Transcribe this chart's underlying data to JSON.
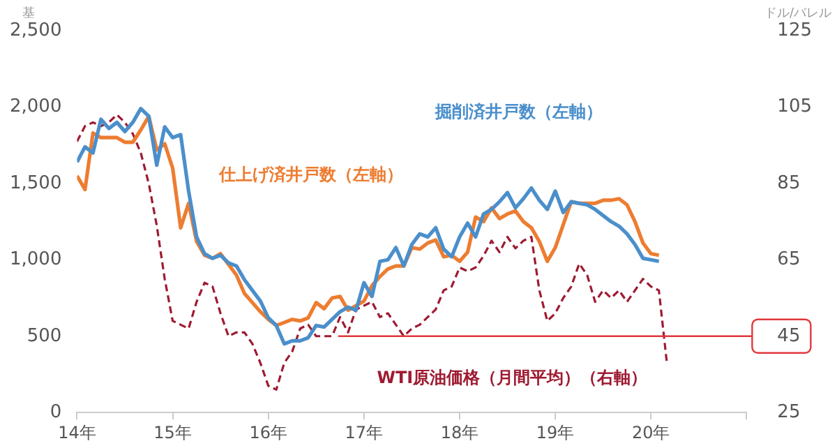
{
  "chart_data": {
    "type": "line",
    "ylabel": "基",
    "y2label": "ドル/バレル",
    "x": [
      "2014-01",
      "2014-02",
      "2014-03",
      "2014-04",
      "2014-05",
      "2014-06",
      "2014-07",
      "2014-08",
      "2014-09",
      "2014-10",
      "2014-11",
      "2014-12",
      "2015-01",
      "2015-02",
      "2015-03",
      "2015-04",
      "2015-05",
      "2015-06",
      "2015-07",
      "2015-08",
      "2015-09",
      "2015-10",
      "2015-11",
      "2015-12",
      "2016-01",
      "2016-02",
      "2016-03",
      "2016-04",
      "2016-05",
      "2016-06",
      "2016-07",
      "2016-08",
      "2016-09",
      "2016-10",
      "2016-11",
      "2016-12",
      "2017-01",
      "2017-02",
      "2017-03",
      "2017-04",
      "2017-05",
      "2017-06",
      "2017-07",
      "2017-08",
      "2017-09",
      "2017-10",
      "2017-11",
      "2017-12",
      "2018-01",
      "2018-02",
      "2018-03",
      "2018-04",
      "2018-05",
      "2018-06",
      "2018-07",
      "2018-08",
      "2018-09",
      "2018-10",
      "2018-11",
      "2018-12",
      "2019-01",
      "2019-02",
      "2019-03",
      "2019-04",
      "2019-05",
      "2019-06",
      "2019-07",
      "2019-08",
      "2019-09",
      "2019-10",
      "2019-11",
      "2019-12",
      "2020-01",
      "2020-02",
      "2020-03"
    ],
    "series": [
      {
        "name": "掘削済井戸数（左軸）",
        "color": "#4a8fcb",
        "values": [
          1640,
          1740,
          1700,
          1920,
          1860,
          1900,
          1840,
          1900,
          1990,
          1940,
          1620,
          1870,
          1800,
          1820,
          1450,
          1150,
          1040,
          1010,
          1030,
          980,
          960,
          870,
          800,
          730,
          620,
          570,
          450,
          470,
          470,
          490,
          570,
          560,
          610,
          660,
          690,
          670,
          850,
          760,
          990,
          1000,
          1080,
          960,
          1100,
          1170,
          1150,
          1210,
          1070,
          1020,
          1150,
          1240,
          1150,
          1300,
          1330,
          1380,
          1440,
          1340,
          1400,
          1470,
          1390,
          1330,
          1450,
          1310,
          1380,
          1370,
          1360,
          1330,
          1290,
          1250,
          1220,
          1170,
          1100,
          1010,
          1000,
          990,
          null
        ]
      },
      {
        "name": "仕上げ済井戸数（左軸）",
        "color": "#ed7d31",
        "values": [
          1550,
          1460,
          1830,
          1800,
          1800,
          1800,
          1770,
          1770,
          1850,
          1940,
          1720,
          1760,
          1600,
          1210,
          1370,
          1120,
          1030,
          1010,
          1040,
          970,
          900,
          780,
          720,
          660,
          610,
          570,
          590,
          610,
          600,
          620,
          720,
          680,
          750,
          760,
          670,
          700,
          730,
          830,
          890,
          940,
          960,
          960,
          1080,
          1070,
          1110,
          1130,
          1020,
          1030,
          990,
          1050,
          1280,
          1250,
          1340,
          1270,
          1300,
          1320,
          1250,
          1210,
          1120,
          990,
          1080,
          1230,
          1380,
          1370,
          1370,
          1370,
          1390,
          1390,
          1400,
          1360,
          1250,
          1110,
          1040,
          1030,
          null
        ]
      },
      {
        "name": "WTI原油価格（月間平均）（右軸）",
        "color": "#9e1b32",
        "axis": "y2",
        "line_style": "dashed",
        "values": [
          96,
          100,
          101,
          100,
          101,
          103,
          101,
          98,
          93,
          85,
          74,
          60,
          49,
          48,
          47,
          54,
          59,
          58,
          51,
          45,
          46,
          46,
          43,
          38,
          32,
          31,
          38,
          41,
          47,
          48,
          45,
          45,
          45,
          50,
          46,
          52,
          53,
          54,
          50,
          51,
          48,
          45,
          47,
          48,
          50,
          52,
          57,
          58,
          63,
          62,
          63,
          66,
          70,
          67,
          71,
          68,
          70,
          71,
          57,
          49,
          51,
          55,
          58,
          64,
          61,
          54,
          57,
          55,
          57,
          54,
          57,
          60,
          58,
          57,
          38
        ]
      }
    ],
    "xlim": [
      "2014-01",
      "2021-01"
    ],
    "xticks": [
      {
        "value": "2014-01",
        "label": "14年"
      },
      {
        "value": "2015-01",
        "label": "15年"
      },
      {
        "value": "2016-01",
        "label": "16年"
      },
      {
        "value": "2017-01",
        "label": "17年"
      },
      {
        "value": "2018-01",
        "label": "18年"
      },
      {
        "value": "2019-01",
        "label": "19年"
      },
      {
        "value": "2020-01",
        "label": "20年"
      },
      {
        "value": "2021-01",
        "label": null
      }
    ],
    "ylim": [
      0,
      2500
    ],
    "yticks": [
      0,
      500,
      {
        "value": 1000,
        "label": "1,000"
      },
      {
        "value": 1500,
        "label": "1,500"
      },
      {
        "value": 2000,
        "label": "2,000"
      },
      {
        "value": 2500,
        "label": "2,500"
      }
    ],
    "y2lim": [
      25,
      125
    ],
    "y2ticks": [
      25,
      45,
      65,
      85,
      105,
      125
    ],
    "ref_lines": [
      {
        "axis": "y2",
        "value": 45,
        "color": "#e0383d"
      }
    ],
    "grid": false,
    "legend": false,
    "marker": "none",
    "line_style": "solid"
  }
}
